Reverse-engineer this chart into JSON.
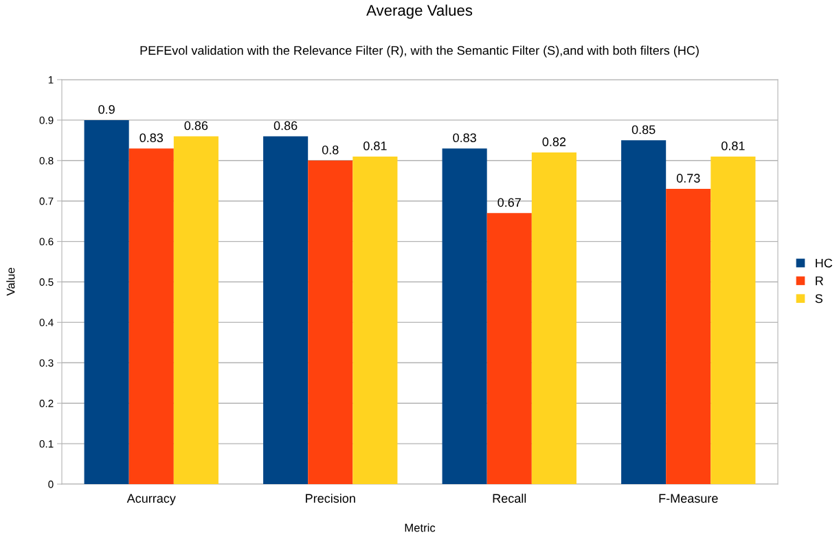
{
  "chart_data": {
    "type": "bar",
    "title": "Average Values",
    "subtitle": "PEFEvol validation with the Relevance Filter (R), with the Semantic Filter (S),and with both filters (HC)",
    "xlabel": "Metric",
    "ylabel": "Value",
    "categories": [
      "Acurracy",
      "Precision",
      "Recall",
      "F-Measure"
    ],
    "series": [
      {
        "name": "HC",
        "color": "#004586",
        "values": [
          0.9,
          0.86,
          0.83,
          0.85
        ]
      },
      {
        "name": "R",
        "color": "#ff420e",
        "values": [
          0.83,
          0.8,
          0.67,
          0.73
        ]
      },
      {
        "name": "S",
        "color": "#ffd320",
        "values": [
          0.86,
          0.81,
          0.82,
          0.81
        ]
      }
    ],
    "ylim": [
      0,
      1
    ],
    "yticks": [
      0,
      0.1,
      0.2,
      0.3,
      0.4,
      0.5,
      0.6,
      0.7,
      0.8,
      0.9,
      1
    ],
    "grid": "y",
    "legend": "right",
    "data_labels": true
  }
}
